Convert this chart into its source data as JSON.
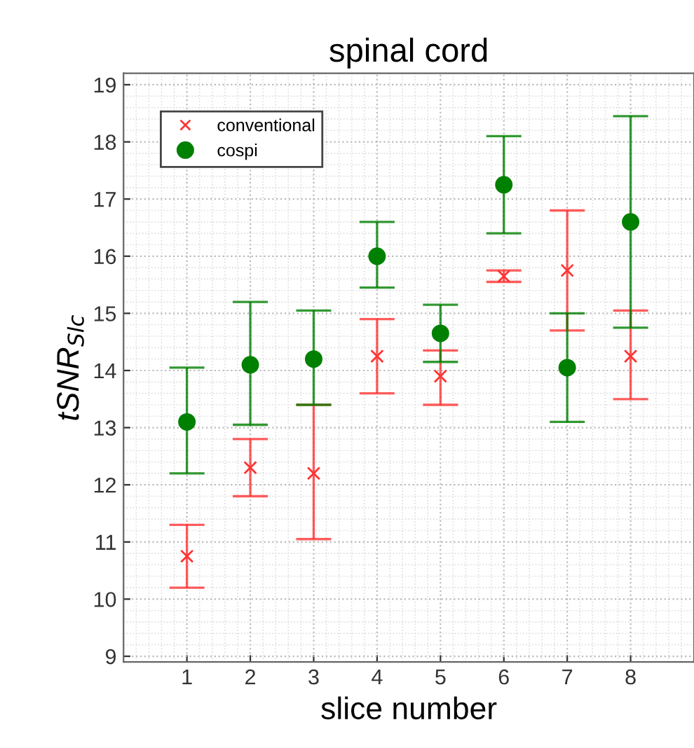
{
  "chart_data": {
    "type": "scatter",
    "title": "spinal cord",
    "xlabel": "slice number",
    "ylabel": "tSNR$_{Slc}$",
    "x": [
      1,
      2,
      3,
      4,
      5,
      6,
      7,
      8
    ],
    "series": [
      {
        "name": "conventional",
        "color": "#ff3333",
        "marker": "cross",
        "values": [
          10.75,
          12.3,
          12.2,
          14.25,
          13.9,
          15.65,
          15.75,
          14.25
        ],
        "errors": [
          [
            10.2,
            11.3
          ],
          [
            11.8,
            12.8
          ],
          [
            11.05,
            13.4
          ],
          [
            13.6,
            14.9
          ],
          [
            13.4,
            14.35
          ],
          [
            15.55,
            15.75
          ],
          [
            14.7,
            16.8
          ],
          [
            13.5,
            15.05
          ]
        ]
      },
      {
        "name": "cospi",
        "color": "#008000",
        "marker": "circle",
        "values": [
          13.1,
          14.1,
          14.2,
          16.0,
          14.65,
          17.25,
          14.05,
          16.6
        ],
        "errors": [
          [
            12.2,
            14.05
          ],
          [
            13.05,
            15.2
          ],
          [
            13.4,
            15.05
          ],
          [
            15.45,
            16.6
          ],
          [
            14.15,
            15.15
          ],
          [
            16.4,
            18.1
          ],
          [
            13.1,
            15.0
          ],
          [
            14.75,
            18.45
          ]
        ]
      }
    ],
    "xlim": [
      0,
      9
    ],
    "xticks": [
      1,
      2,
      3,
      4,
      5,
      6,
      7,
      8
    ],
    "ylim": [
      8.9,
      19.2
    ],
    "yticks": [
      9,
      10,
      11,
      12,
      13,
      14,
      15,
      16,
      17,
      18,
      19
    ],
    "grid": true,
    "legend": "top left"
  }
}
